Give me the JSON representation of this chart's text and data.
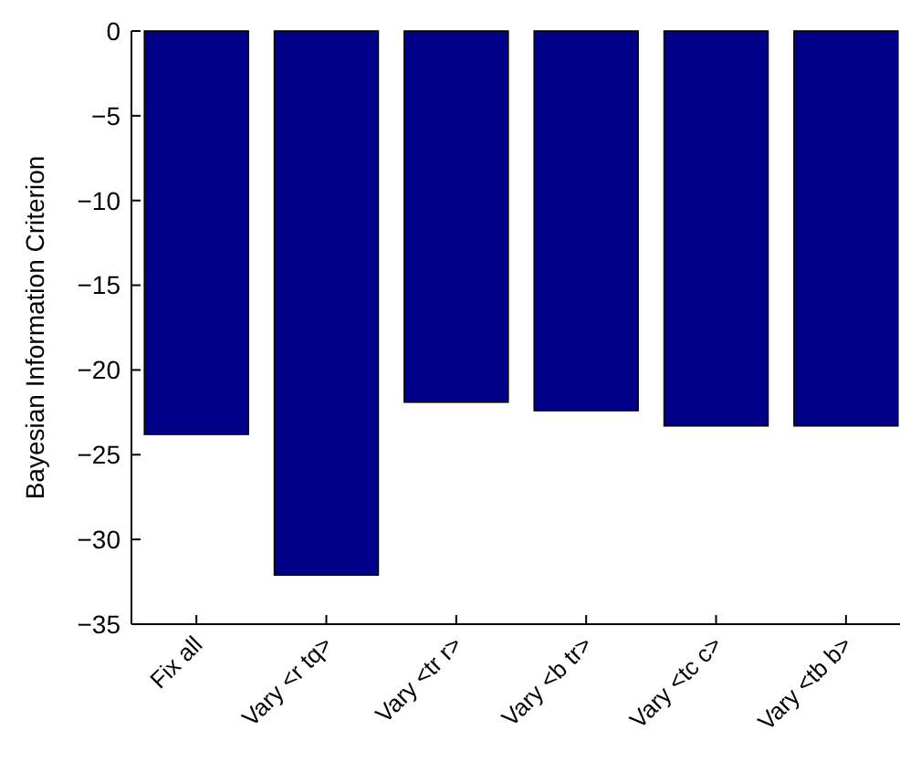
{
  "chart_data": {
    "type": "bar",
    "ylabel": "Bayesian Information Criterion",
    "categories": [
      "Fix all",
      "Vary <r tq>",
      "Vary <tr r>",
      "Vary <b tr>",
      "Vary <tc c>",
      "Vary <tb b>"
    ],
    "values": [
      -23.8,
      -32.1,
      -21.9,
      -22.4,
      -23.3,
      -23.3
    ],
    "color": "#000088",
    "ylim": [
      -35,
      0
    ],
    "yticks": [
      -35,
      -30,
      -25,
      -20,
      -15,
      -10,
      -5,
      0
    ],
    "grid": false
  }
}
